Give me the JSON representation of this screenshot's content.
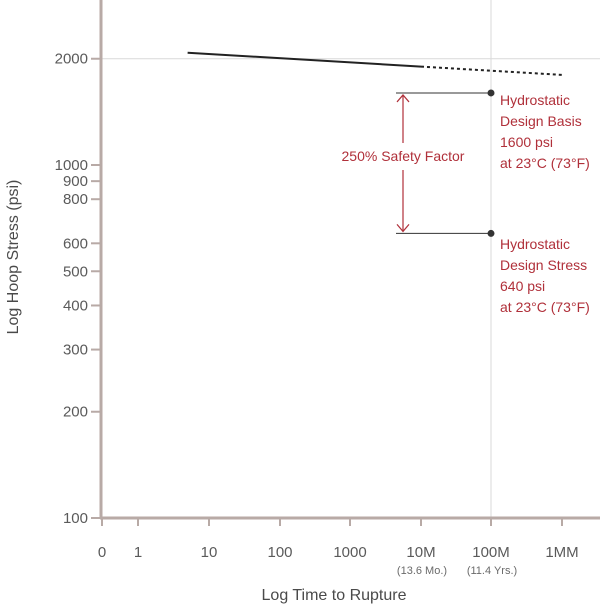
{
  "chart_data": {
    "type": "line",
    "title": "",
    "xlabel": "Log Time to Rupture",
    "ylabel": "Log Hoop Stress (psi)",
    "x_scale": "log",
    "y_scale": "log",
    "ylim": [
      100,
      2500
    ],
    "grid": "vertical reference at 100M, horizontal reference at 2000",
    "x_ticks": [
      {
        "label": "0",
        "sub": ""
      },
      {
        "label": "1",
        "sub": ""
      },
      {
        "label": "10",
        "sub": ""
      },
      {
        "label": "100",
        "sub": ""
      },
      {
        "label": "1000",
        "sub": ""
      },
      {
        "label": "10M",
        "sub": "(13.6 Mo.)"
      },
      {
        "label": "100M",
        "sub": "(11.4 Yrs.)"
      },
      {
        "label": "1MM",
        "sub": ""
      }
    ],
    "y_ticks": [
      {
        "value": 100,
        "label": "100"
      },
      {
        "value": 200,
        "label": "200"
      },
      {
        "value": 300,
        "label": "300"
      },
      {
        "value": 400,
        "label": "400"
      },
      {
        "value": 500,
        "label": "500"
      },
      {
        "value": 600,
        "label": "600"
      },
      {
        "value": 800,
        "label": "800"
      },
      {
        "value": 900,
        "label": "900"
      },
      {
        "value": 1000,
        "label": "1000"
      },
      {
        "value": 2000,
        "label": "2000"
      }
    ],
    "series": [
      {
        "style": "solid",
        "color": "#222222",
        "points": [
          {
            "x": "5",
            "y": 2080
          },
          {
            "x": "10M",
            "y": 1900
          }
        ]
      },
      {
        "style": "dashed",
        "color": "#222222",
        "points": [
          {
            "x": "10M",
            "y": 1900
          },
          {
            "x": "1MM",
            "y": 1800
          }
        ]
      }
    ],
    "points": [
      {
        "name": "design-basis",
        "x": "100M",
        "y": 1600
      },
      {
        "name": "design-stress",
        "x": "100M",
        "y": 640
      }
    ],
    "annotations": {
      "design_basis": [
        "Hydrostatic",
        "Design Basis",
        "1600 psi",
        "at 23°C (73°F)"
      ],
      "design_stress": [
        "Hydrostatic",
        "Design Stress",
        "640 psi",
        "at 23°C (73°F)"
      ],
      "safety_factor": "250% Safety Factor"
    },
    "colors": {
      "annotation": "#b0303a",
      "axis": "#b8aaa6",
      "curve": "#222222",
      "grid": "#d9d9d9"
    }
  }
}
